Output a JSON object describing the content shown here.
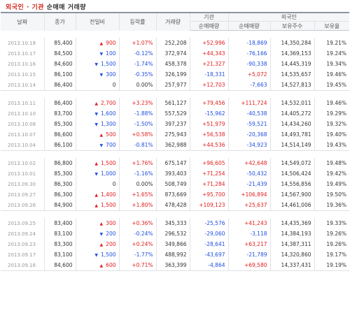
{
  "title": {
    "part1": "외국인",
    "sep": " · ",
    "part2": "기관",
    "part3": " 순매매 거래량"
  },
  "header": {
    "date": "날짜",
    "close": "종가",
    "change": "전일비",
    "rate": "등락률",
    "volume": "거래량",
    "inst": "기관",
    "foreign": "외국인",
    "inst_net": "순매매량",
    "foreign_net": "순매매량",
    "holdings": "보유주수",
    "ratio": "보유율"
  },
  "colors": {
    "up": "#e21e1e",
    "down": "#1e4ee2",
    "header_bg": "#f5f6f8"
  },
  "groups": [
    [
      {
        "date": "2013.10.18",
        "close": "85,400",
        "dir": "up",
        "chg": "900",
        "rate": "+1.07%",
        "vol": "252,208",
        "inst": "+52,996",
        "fnet": "-18,869",
        "hold": "14,350,284",
        "ratio": "19.21%"
      },
      {
        "date": "2013.10.17",
        "close": "84,500",
        "dir": "down",
        "chg": "100",
        "rate": "-0.12%",
        "vol": "372,974",
        "inst": "+44,343",
        "fnet": "-76,166",
        "hold": "14,369,153",
        "ratio": "19.24%"
      },
      {
        "date": "2013.10.16",
        "close": "84,600",
        "dir": "down",
        "chg": "1,500",
        "rate": "-1.74%",
        "vol": "458,378",
        "inst": "+21,327",
        "fnet": "-90,338",
        "hold": "14,445,319",
        "ratio": "19.34%"
      },
      {
        "date": "2013.10.15",
        "close": "86,100",
        "dir": "down",
        "chg": "300",
        "rate": "-0.35%",
        "vol": "326,199",
        "inst": "-18,331",
        "fnet": "+5,072",
        "hold": "14,535,657",
        "ratio": "19.46%"
      },
      {
        "date": "2013.10.14",
        "close": "86,400",
        "dir": "zero",
        "chg": "0",
        "rate": "0.00%",
        "vol": "257,977",
        "inst": "+12,703",
        "fnet": "-7,663",
        "hold": "14,527,813",
        "ratio": "19.45%"
      }
    ],
    [
      {
        "date": "2013.10.11",
        "close": "86,400",
        "dir": "up",
        "chg": "2,700",
        "rate": "+3.23%",
        "vol": "561,127",
        "inst": "+79,456",
        "fnet": "+111,724",
        "hold": "14,532,011",
        "ratio": "19.46%"
      },
      {
        "date": "2013.10.10",
        "close": "83,700",
        "dir": "down",
        "chg": "1,600",
        "rate": "-1.88%",
        "vol": "557,529",
        "inst": "-15,962",
        "fnet": "-40,538",
        "hold": "14,405,272",
        "ratio": "19.29%"
      },
      {
        "date": "2013.10.08",
        "close": "85,300",
        "dir": "down",
        "chg": "1,300",
        "rate": "-1.50%",
        "vol": "397,237",
        "inst": "+51,979",
        "fnet": "-59,521",
        "hold": "14,434,260",
        "ratio": "19.32%"
      },
      {
        "date": "2013.10.07",
        "close": "86,600",
        "dir": "up",
        "chg": "500",
        "rate": "+0.58%",
        "vol": "275,943",
        "inst": "+56,538",
        "fnet": "-20,368",
        "hold": "14,493,781",
        "ratio": "19.40%"
      },
      {
        "date": "2013.10.04",
        "close": "86,100",
        "dir": "down",
        "chg": "700",
        "rate": "-0.81%",
        "vol": "362,988",
        "inst": "+44,536",
        "fnet": "-34,923",
        "hold": "14,514,149",
        "ratio": "19.43%"
      }
    ],
    [
      {
        "date": "2013.10.02",
        "close": "86,800",
        "dir": "up",
        "chg": "1,500",
        "rate": "+1.76%",
        "vol": "675,147",
        "inst": "+96,605",
        "fnet": "+42,648",
        "hold": "14,549,072",
        "ratio": "19.48%"
      },
      {
        "date": "2013.10.01",
        "close": "85,300",
        "dir": "down",
        "chg": "1,000",
        "rate": "-1.16%",
        "vol": "393,403",
        "inst": "+71,254",
        "fnet": "-50,432",
        "hold": "14,506,424",
        "ratio": "19.42%"
      },
      {
        "date": "2013.09.30",
        "close": "86,300",
        "dir": "zero",
        "chg": "0",
        "rate": "0.00%",
        "vol": "508,749",
        "inst": "+71,284",
        "fnet": "-21,439",
        "hold": "14,556,856",
        "ratio": "19.49%"
      },
      {
        "date": "2013.09.27",
        "close": "86,300",
        "dir": "up",
        "chg": "1,400",
        "rate": "+1.65%",
        "vol": "873,669",
        "inst": "+95,700",
        "fnet": "+106,894",
        "hold": "14,567,900",
        "ratio": "19.50%"
      },
      {
        "date": "2013.09.26",
        "close": "84,900",
        "dir": "up",
        "chg": "1,500",
        "rate": "+1.80%",
        "vol": "478,428",
        "inst": "+109,123",
        "fnet": "+25,637",
        "hold": "14,461,006",
        "ratio": "19.36%"
      }
    ],
    [
      {
        "date": "2013.09.25",
        "close": "83,400",
        "dir": "up",
        "chg": "300",
        "rate": "+0.36%",
        "vol": "345,333",
        "inst": "-25,576",
        "fnet": "+41,243",
        "hold": "14,435,369",
        "ratio": "19.33%"
      },
      {
        "date": "2013.09.24",
        "close": "83,100",
        "dir": "down",
        "chg": "200",
        "rate": "-0.24%",
        "vol": "296,532",
        "inst": "-29,060",
        "fnet": "-3,118",
        "hold": "14,384,193",
        "ratio": "19.26%"
      },
      {
        "date": "2013.09.23",
        "close": "83,300",
        "dir": "up",
        "chg": "200",
        "rate": "+0.24%",
        "vol": "349,866",
        "inst": "-28,641",
        "fnet": "+63,217",
        "hold": "14,387,311",
        "ratio": "19.26%"
      },
      {
        "date": "2013.09.17",
        "close": "83,100",
        "dir": "down",
        "chg": "1,500",
        "rate": "-1.77%",
        "vol": "488,992",
        "inst": "-43,697",
        "fnet": "-21,789",
        "hold": "14,320,860",
        "ratio": "19.17%"
      },
      {
        "date": "2013.09.16",
        "close": "84,600",
        "dir": "up",
        "chg": "600",
        "rate": "+0.71%",
        "vol": "363,399",
        "inst": "-4,864",
        "fnet": "+69,580",
        "hold": "14,337,431",
        "ratio": "19.19%"
      }
    ]
  ]
}
